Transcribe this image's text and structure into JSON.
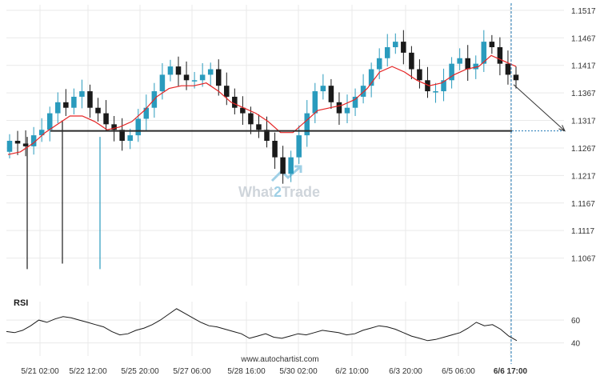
{
  "watermark": {
    "left": "What",
    "mid": "2",
    "right": "Trade"
  },
  "footer": {
    "source": "www.autochartist.com"
  },
  "rsi_panel": {
    "label": "RSI"
  },
  "colors": {
    "bull": "#2a9bbd",
    "bear": "#1a1a1a",
    "ma": "#e52424",
    "level": "#2a2a2a",
    "grid": "#e9e9e9",
    "marker": "#1f78b4",
    "watermark": "#cfd5db",
    "watermark_accent": "#9fd0e6"
  },
  "chart_data": [
    {
      "type": "candlestick",
      "title": "",
      "y_axis": {
        "position": "right",
        "ylim": [
          1.1017,
          1.1527
        ],
        "ticks": [
          1.1517,
          1.1467,
          1.1417,
          1.1367,
          1.1317,
          1.1267,
          1.1217,
          1.1167,
          1.1117,
          1.1067
        ]
      },
      "x_axis": {
        "tick_labels": [
          "5/21 02:00",
          "5/22 12:00",
          "5/25 20:00",
          "5/27 06:00",
          "5/28 16:00",
          "5/30 02:00",
          "6/2 10:00",
          "6/3 20:00",
          "6/5 06:00",
          "6/6 17:00"
        ],
        "highlighted_label": "6/6 17:00"
      },
      "grid": true,
      "series": [
        {
          "kind": "price",
          "approx_closes": [
            1.128,
            1.1275,
            1.127,
            1.129,
            1.13,
            1.133,
            1.135,
            1.134,
            1.136,
            1.137,
            1.134,
            1.133,
            1.131,
            1.13,
            1.128,
            1.129,
            1.132,
            1.134,
            1.137,
            1.14,
            1.1415,
            1.14,
            1.139,
            1.139,
            1.14,
            1.141,
            1.138,
            1.136,
            1.134,
            1.133,
            1.131,
            1.13,
            1.128,
            1.125,
            1.122,
            1.125,
            1.129,
            1.133,
            1.137,
            1.138,
            1.135,
            1.133,
            1.134,
            1.136,
            1.138,
            1.141,
            1.143,
            1.145,
            1.146,
            1.144,
            1.141,
            1.139,
            1.137,
            1.137,
            1.139,
            1.142,
            1.143,
            1.141,
            1.142,
            1.146,
            1.145,
            1.142,
            1.14,
            1.139
          ]
        },
        {
          "kind": "moving-average",
          "approx_values": [
            1.1255,
            1.126,
            1.1275,
            1.1295,
            1.131,
            1.1325,
            1.1325,
            1.1315,
            1.13,
            1.1305,
            1.1315,
            1.1335,
            1.136,
            1.1375,
            1.138,
            1.138,
            1.1385,
            1.137,
            1.135,
            1.134,
            1.133,
            1.1315,
            1.1295,
            1.1295,
            1.1315,
            1.1335,
            1.134,
            1.1345,
            1.1355,
            1.1375,
            1.1405,
            1.1415,
            1.1405,
            1.139,
            1.138,
            1.1385,
            1.14,
            1.141,
            1.1415,
            1.1435,
            1.1425,
            1.1415
          ]
        }
      ],
      "support_level": 1.1298,
      "projection": {
        "from": 1.1382,
        "to": 1.1298,
        "target_label": "6/6 17:00"
      }
    },
    {
      "type": "line",
      "title": "RSI",
      "y_axis": {
        "position": "right",
        "ylim": [
          32,
          72
        ],
        "ticks": [
          60,
          40
        ]
      },
      "series": [
        {
          "name": "RSI",
          "approx_values": [
            50,
            49,
            51,
            55,
            60,
            58,
            61,
            63,
            62,
            60,
            58,
            56,
            54,
            50,
            47,
            48,
            51,
            53,
            56,
            60,
            65,
            70,
            66,
            62,
            58,
            55,
            54,
            52,
            50,
            48,
            44,
            46,
            48,
            45,
            44,
            46,
            48,
            47,
            49,
            51,
            50,
            49,
            47,
            48,
            51,
            53,
            55,
            54,
            52,
            49,
            46,
            44,
            42,
            43,
            45,
            47,
            49,
            53,
            58,
            55,
            56,
            52,
            46,
            42
          ]
        }
      ]
    }
  ]
}
